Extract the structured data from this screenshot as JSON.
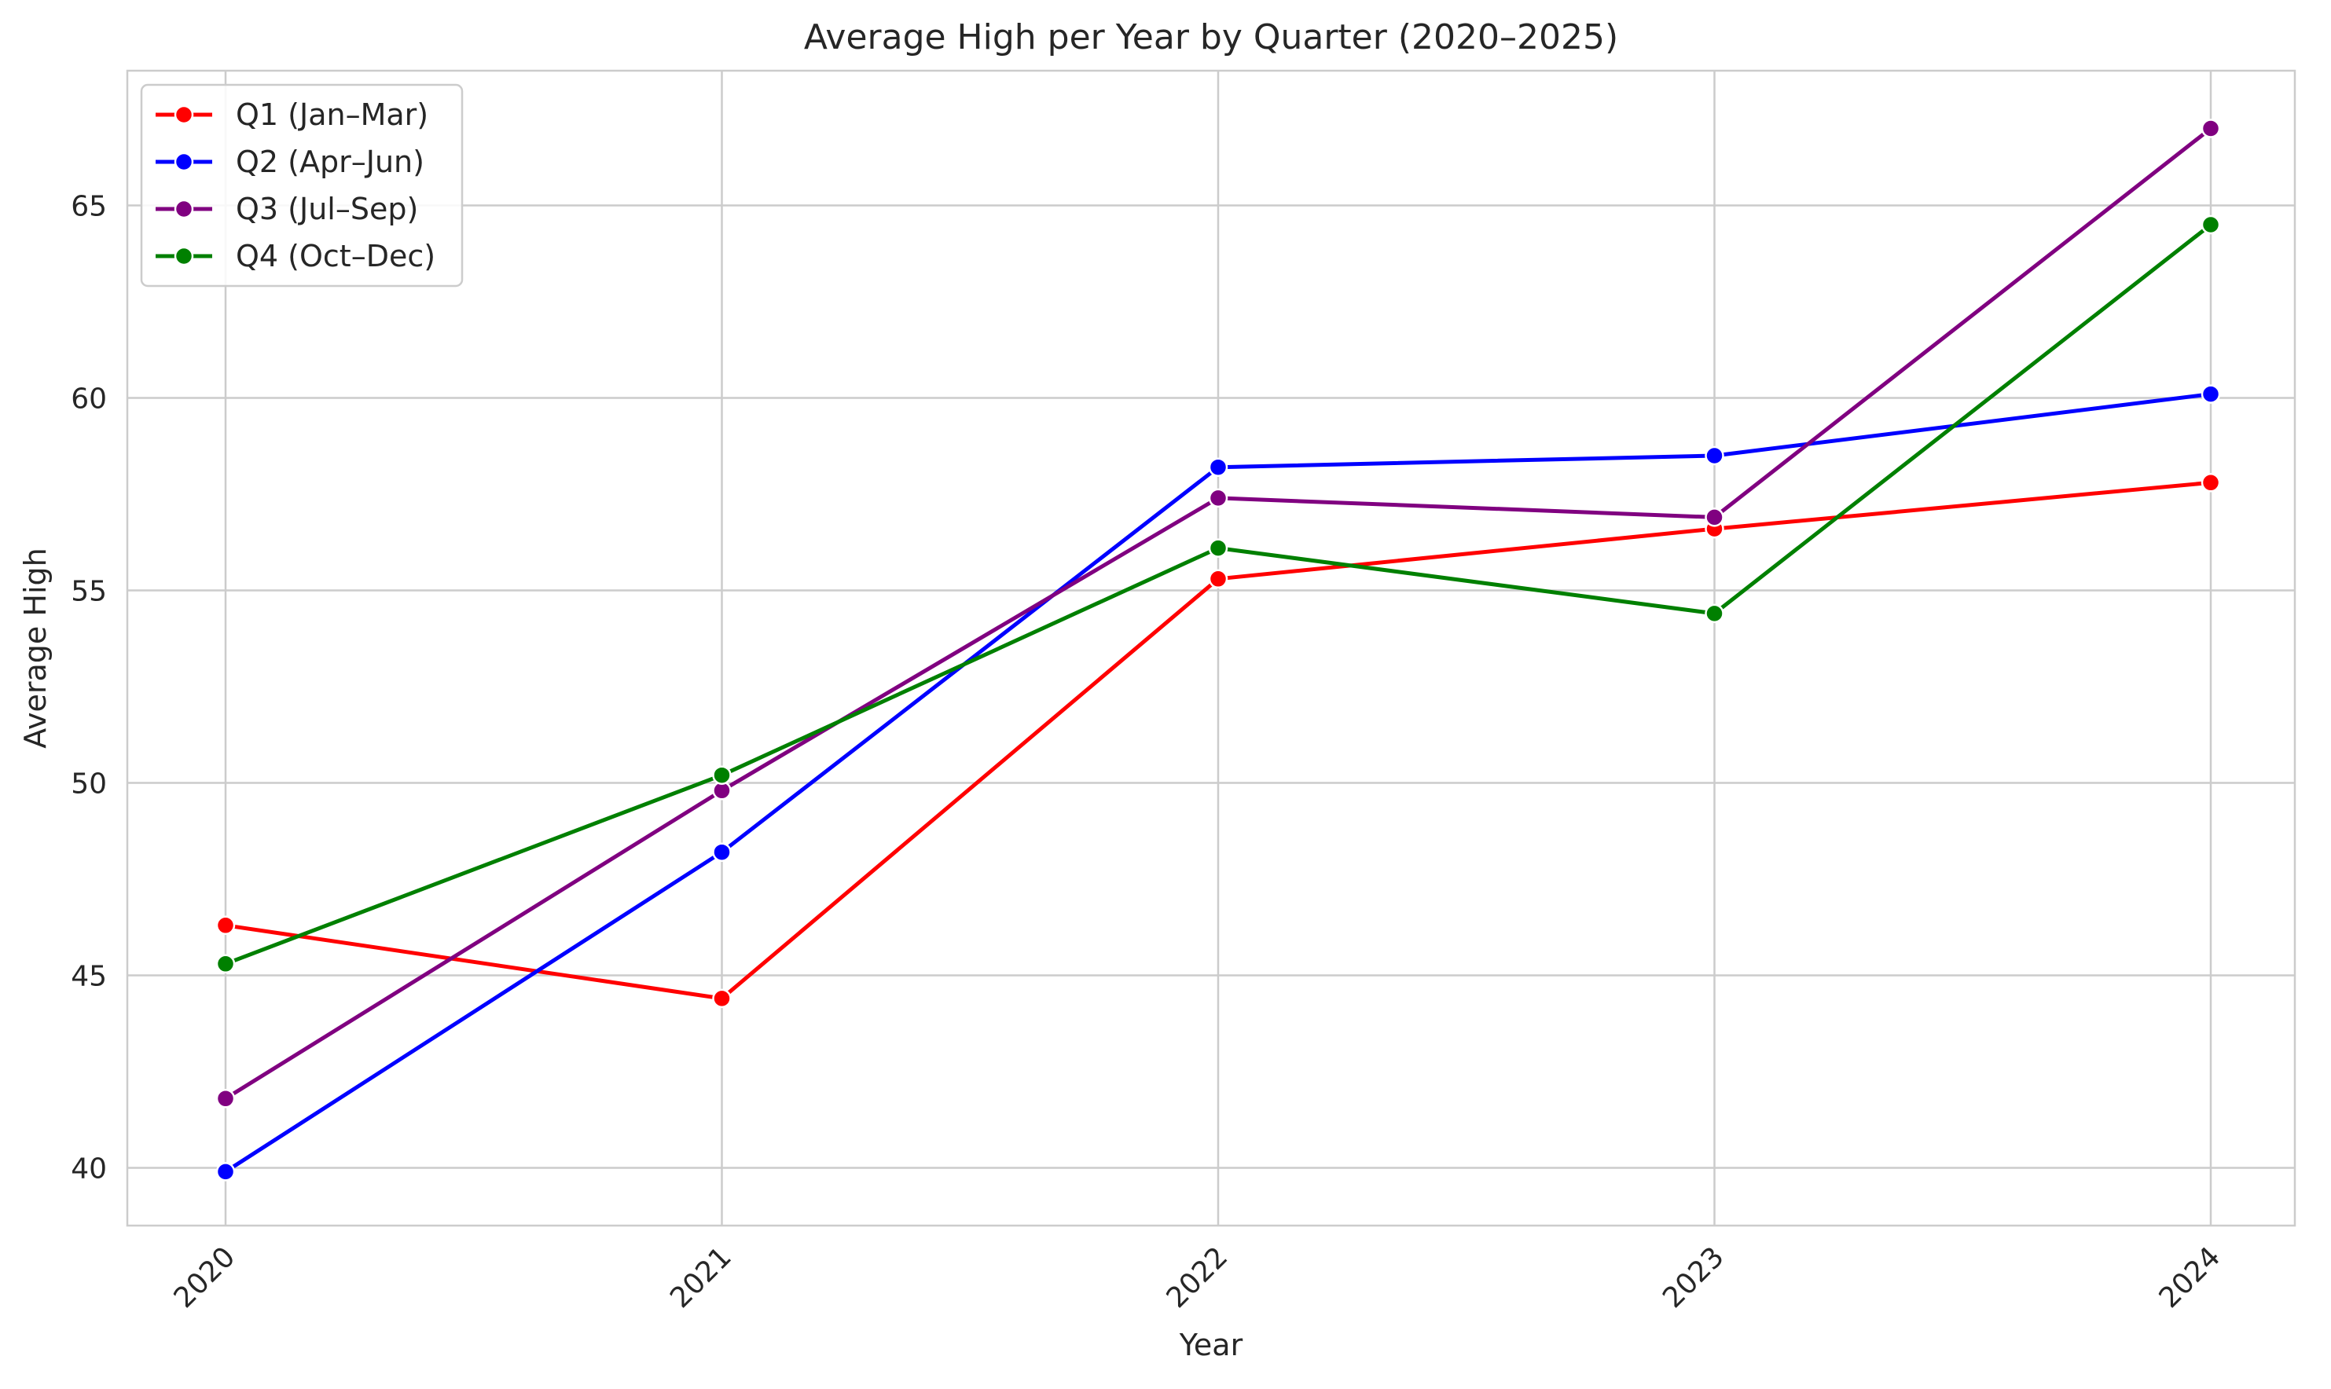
{
  "chart_data": {
    "type": "line",
    "title": "Average High per Year by Quarter (2020–2025)",
    "xlabel": "Year",
    "ylabel": "Average High",
    "categories": [
      "2020",
      "2021",
      "2022",
      "2023",
      "2024"
    ],
    "y_ticks": [
      40,
      45,
      50,
      55,
      60,
      65
    ],
    "ylim": [
      38.5,
      68.5
    ],
    "grid": true,
    "legend_position": "top-left",
    "series": [
      {
        "name": "Q1 (Jan–Mar)",
        "color": "#ff0000",
        "values": [
          46.3,
          44.4,
          55.3,
          56.6,
          57.8
        ]
      },
      {
        "name": "Q2 (Apr–Jun)",
        "color": "#0000ff",
        "values": [
          39.9,
          48.2,
          58.2,
          58.5,
          60.1
        ]
      },
      {
        "name": "Q3 (Jul–Sep)",
        "color": "#800080",
        "values": [
          41.8,
          49.8,
          57.4,
          56.9,
          67.0
        ]
      },
      {
        "name": "Q4 (Oct–Dec)",
        "color": "#008000",
        "values": [
          45.3,
          50.2,
          56.1,
          54.4,
          64.5
        ]
      }
    ]
  }
}
